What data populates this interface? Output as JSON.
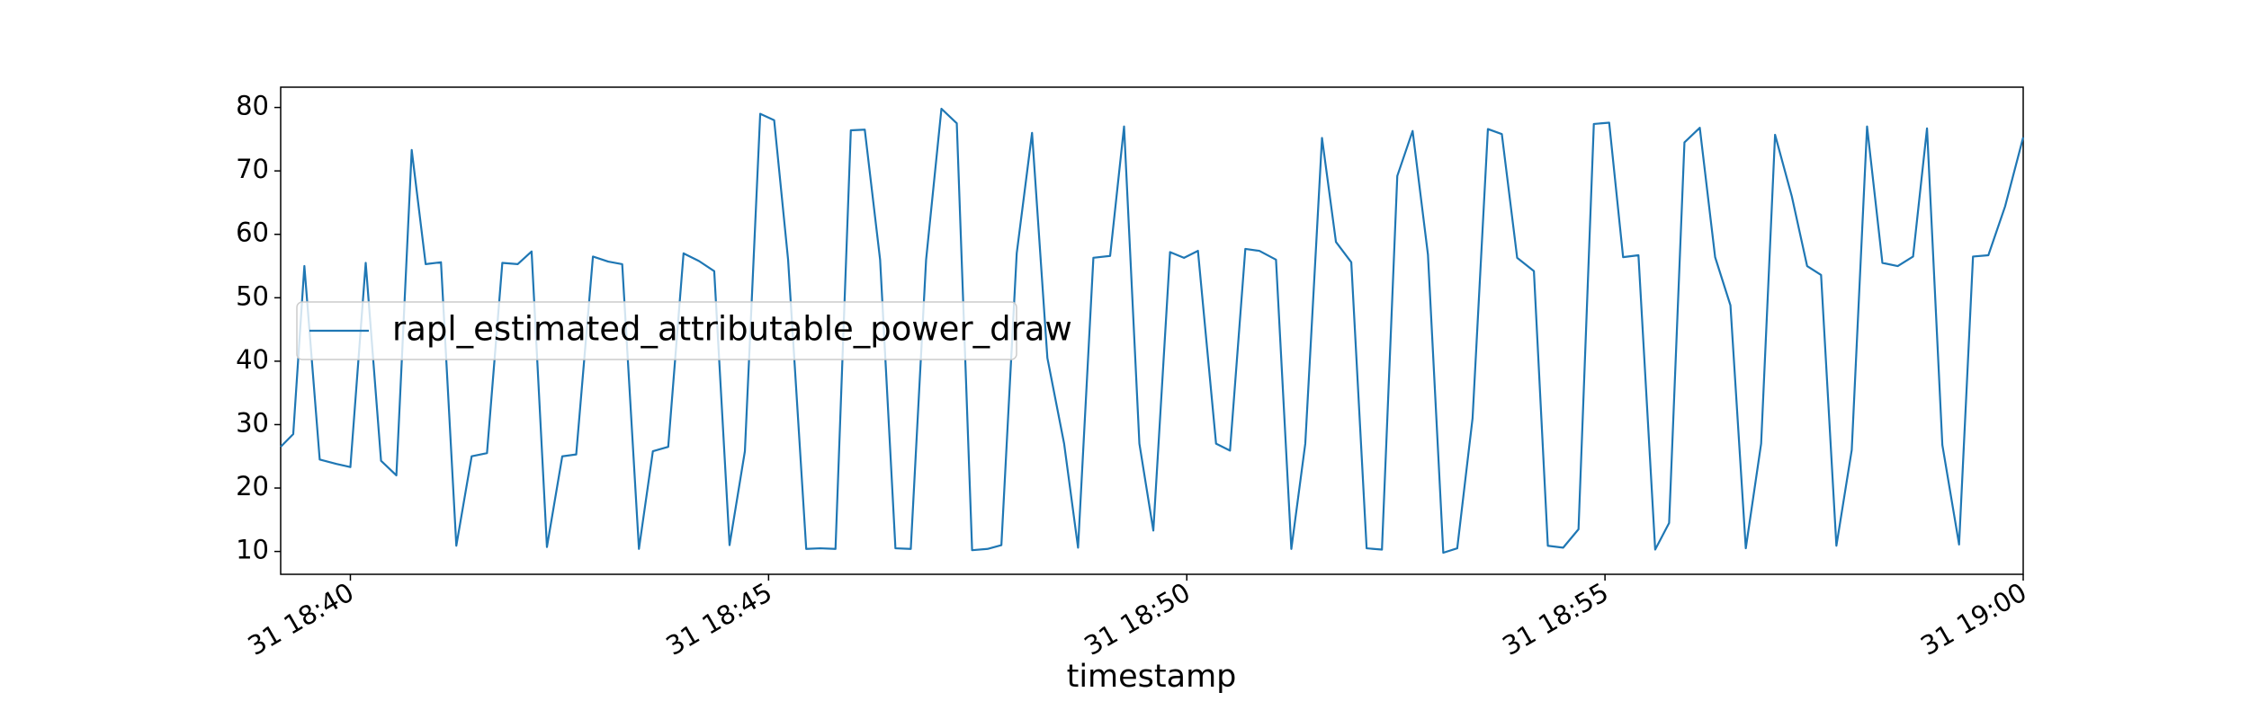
{
  "chart_data": {
    "type": "line",
    "xlabel": "timestamp",
    "x": [
      "31 18:39:10",
      "31 18:39:19",
      "31 18:39:27",
      "31 18:39:38",
      "31 18:39:50",
      "31 18:40:00",
      "31 18:40:11",
      "31 18:40:22",
      "31 18:40:33",
      "31 18:40:44",
      "31 18:40:54",
      "31 18:41:05",
      "31 18:41:16",
      "31 18:41:27",
      "31 18:41:38",
      "31 18:41:49",
      "31 18:42:00",
      "31 18:42:10",
      "31 18:42:21",
      "31 18:42:32",
      "31 18:42:42",
      "31 18:42:54",
      "31 18:43:05",
      "31 18:43:15",
      "31 18:43:27",
      "31 18:43:37",
      "31 18:43:48",
      "31 18:43:59",
      "31 18:44:10",
      "31 18:44:21",
      "31 18:44:32",
      "31 18:44:43",
      "31 18:44:54",
      "31 18:45:04",
      "31 18:45:14",
      "31 18:45:27",
      "31 18:45:37",
      "31 18:45:48",
      "31 18:45:59",
      "31 18:46:09",
      "31 18:46:20",
      "31 18:46:31",
      "31 18:46:42",
      "31 18:46:53",
      "31 18:47:04",
      "31 18:47:15",
      "31 18:47:26",
      "31 18:47:37",
      "31 18:47:47",
      "31 18:47:58",
      "31 18:48:09",
      "31 18:48:20",
      "31 18:48:32",
      "31 18:48:42",
      "31 18:48:53",
      "31 18:49:05",
      "31 18:49:15",
      "31 18:49:26",
      "31 18:49:36",
      "31 18:49:48",
      "31 18:49:58",
      "31 18:50:08",
      "31 18:50:21",
      "31 18:50:31",
      "31 18:50:42",
      "31 18:50:52",
      "31 18:51:04",
      "31 18:51:15",
      "31 18:51:25",
      "31 18:51:37",
      "31 18:51:47",
      "31 18:51:58",
      "31 18:52:09",
      "31 18:52:20",
      "31 18:52:31",
      "31 18:52:42",
      "31 18:52:53",
      "31 18:53:04",
      "31 18:53:14",
      "31 18:53:25",
      "31 18:53:36",
      "31 18:53:46",
      "31 18:53:57",
      "31 18:54:09",
      "31 18:54:19",
      "31 18:54:30",
      "31 18:54:41",
      "31 18:54:52",
      "31 18:55:03",
      "31 18:55:13",
      "31 18:55:24",
      "31 18:55:36",
      "31 18:55:46",
      "31 18:55:57",
      "31 18:56:08",
      "31 18:56:19",
      "31 18:56:30",
      "31 18:56:41",
      "31 18:56:52",
      "31 18:57:02",
      "31 18:57:14",
      "31 18:57:25",
      "31 18:57:35",
      "31 18:57:46",
      "31 18:57:57",
      "31 18:58:08",
      "31 18:58:19",
      "31 18:58:30",
      "31 18:58:41",
      "31 18:58:51",
      "31 18:59:02",
      "31 18:59:14",
      "31 18:59:24",
      "31 18:59:35",
      "31 18:59:47",
      "31 19:00:00"
    ],
    "series": [
      {
        "name": "rapl_estimated_attributable_power_draw",
        "color": "#1f77b4",
        "values": [
          26.5,
          28.5,
          55,
          24.5,
          23.8,
          23.3,
          55.5,
          24.3,
          22,
          73.3,
          55.3,
          55.6,
          10.9,
          25,
          25.5,
          55.5,
          55.3,
          57.3,
          10.7,
          25,
          25.3,
          56.5,
          55.7,
          55.3,
          10.4,
          25.8,
          26.5,
          57,
          55.8,
          54.2,
          11,
          25.8,
          79,
          78,
          56,
          10.4,
          10.5,
          10.4,
          76.4,
          76.5,
          56,
          10.5,
          10.4,
          56,
          79.8,
          77.5,
          10.2,
          10.4,
          11,
          57,
          76,
          40.5,
          27,
          10.6,
          56.3,
          56.6,
          77,
          27,
          13.3,
          57.2,
          56.3,
          57.4,
          27,
          25.9,
          57.7,
          57.4,
          56,
          10.4,
          27,
          75.2,
          58.8,
          55.6,
          10.5,
          10.3,
          69.2,
          76.3,
          56.8,
          9.8,
          10.5,
          31,
          76.6,
          75.8,
          56.3,
          54.2,
          10.9,
          10.6,
          13.5,
          77.4,
          77.6,
          56.4,
          56.7,
          10.3,
          14.5,
          74.5,
          76.8,
          56.4,
          48.8,
          10.5,
          27,
          75.7,
          66,
          55,
          53.6,
          10.9,
          26,
          77,
          55.5,
          55,
          56.5,
          76.7,
          26.8,
          11.1,
          56.5,
          56.7,
          64.4,
          75.3
        ]
      }
    ],
    "xlim": [
      "31 18:39:10",
      "31 19:00:00"
    ],
    "xticks": [
      {
        "value": "31 18:40:00",
        "label": "31 18:40"
      },
      {
        "value": "31 18:45:00",
        "label": "31 18:45"
      },
      {
        "value": "31 18:50:00",
        "label": "31 18:50"
      },
      {
        "value": "31 18:55:00",
        "label": "31 18:55"
      },
      {
        "value": "31 19:00:00",
        "label": "31 19:00"
      }
    ],
    "ylim": [
      6.4,
      83.2
    ],
    "yticks": [
      10,
      20,
      30,
      40,
      50,
      60,
      70,
      80
    ],
    "grid": false,
    "legend": "center left"
  }
}
